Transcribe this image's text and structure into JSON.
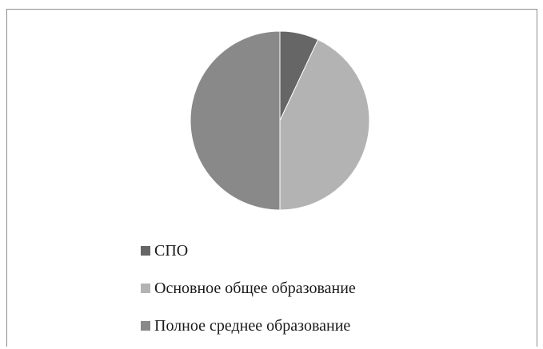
{
  "chart_data": {
    "type": "pie",
    "title": "",
    "slices": [
      {
        "label": "СПО",
        "value": 7,
        "color": "#666666"
      },
      {
        "label": "Основное общее образование",
        "value": 43,
        "color": "#b3b3b3"
      },
      {
        "label": "Полное среднее образование",
        "value": 50,
        "color": "#898989"
      }
    ],
    "legend": {
      "position": "bottom",
      "items": [
        {
          "label": "СПО",
          "color": "#666666"
        },
        {
          "label": "Основное общее образование",
          "color": "#b3b3b3"
        },
        {
          "label": "Полное среднее образование",
          "color": "#898989"
        }
      ]
    },
    "start_angle": "12 o'clock",
    "direction": "clockwise"
  }
}
